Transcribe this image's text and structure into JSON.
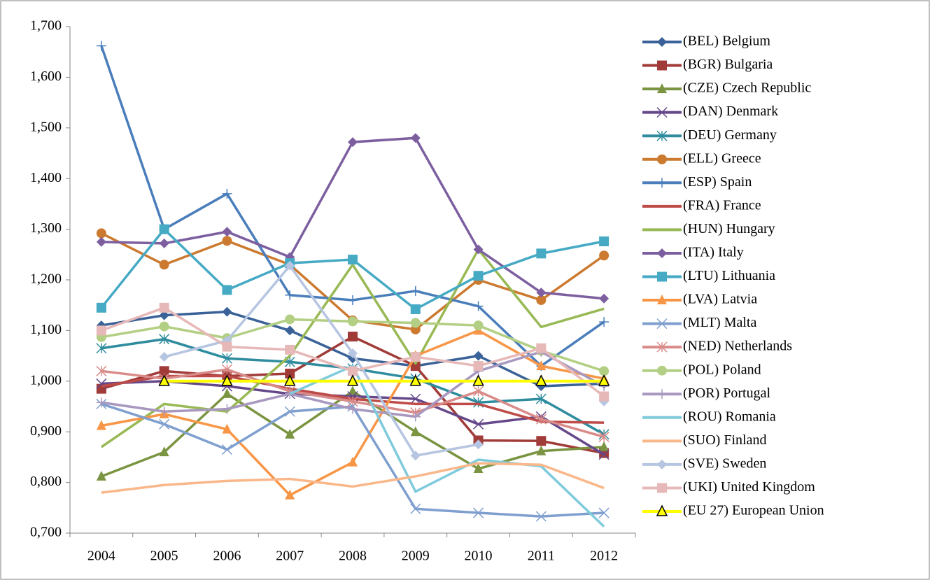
{
  "chart_data": {
    "type": "line",
    "categories": [
      "2004",
      "2005",
      "2006",
      "2007",
      "2008",
      "2009",
      "2010",
      "2011",
      "2012"
    ],
    "ylim": [
      0.7,
      1.7
    ],
    "yticks": [
      {
        "value": 0.7,
        "label": "0,700"
      },
      {
        "value": 0.8,
        "label": "0,800"
      },
      {
        "value": 0.9,
        "label": "0,900"
      },
      {
        "value": 1.0,
        "label": "1,000"
      },
      {
        "value": 1.1,
        "label": "1,100"
      },
      {
        "value": 1.2,
        "label": "1,200"
      },
      {
        "value": 1.3,
        "label": "1,300"
      },
      {
        "value": 1.4,
        "label": "1,400"
      },
      {
        "value": 1.5,
        "label": "1,500"
      },
      {
        "value": 1.6,
        "label": "1,600"
      },
      {
        "value": 1.7,
        "label": "1,700"
      }
    ],
    "legend": "right",
    "series": [
      {
        "name": "(BEL) Belgium",
        "color": "#3a6298",
        "marker": "diamond",
        "values": [
          1.11,
          1.13,
          1.137,
          1.1,
          1.045,
          1.03,
          1.05,
          0.99,
          0.995
        ]
      },
      {
        "name": "(BGR) Bulgaria",
        "color": "#a03b38",
        "marker": "square",
        "values": [
          0.985,
          1.02,
          1.01,
          1.015,
          1.088,
          1.03,
          0.883,
          0.882,
          0.858
        ]
      },
      {
        "name": "(CZE) Czech Republic",
        "color": "#7a9441",
        "marker": "triangle",
        "values": [
          0.812,
          0.86,
          0.975,
          0.895,
          0.98,
          0.9,
          0.827,
          0.862,
          0.87
        ]
      },
      {
        "name": "(DAN) Denmark",
        "color": "#65488a",
        "marker": "x",
        "values": [
          0.995,
          1.0,
          0.99,
          0.975,
          0.97,
          0.965,
          0.915,
          0.93,
          0.855
        ]
      },
      {
        "name": "(DEU) Germany",
        "color": "#2e8c9e",
        "marker": "star",
        "values": [
          1.065,
          1.083,
          1.045,
          1.038,
          1.025,
          1.005,
          0.958,
          0.965,
          0.895
        ]
      },
      {
        "name": "(ELL) Greece",
        "color": "#cc7a30",
        "marker": "circle",
        "values": [
          1.292,
          1.23,
          1.277,
          1.23,
          1.12,
          1.102,
          1.2,
          1.16,
          1.248
        ]
      },
      {
        "name": "(ESP) Spain",
        "color": "#4a7ebb",
        "marker": "plus",
        "values": [
          1.662,
          1.3,
          1.37,
          1.17,
          1.16,
          1.178,
          1.148,
          1.03,
          1.117
        ]
      },
      {
        "name": "(FRA) France",
        "color": "#be4b48",
        "marker": "none",
        "values": [
          0.99,
          1.01,
          1.01,
          0.985,
          0.965,
          0.955,
          0.955,
          0.92,
          0.918
        ]
      },
      {
        "name": "(HUN) Hungary",
        "color": "#98b954",
        "marker": "none",
        "values": [
          0.87,
          0.955,
          0.94,
          1.05,
          1.23,
          1.035,
          1.26,
          1.107,
          1.143
        ]
      },
      {
        "name": "(ITA) Italy",
        "color": "#7d5fa0",
        "marker": "diamond",
        "values": [
          1.275,
          1.272,
          1.295,
          1.245,
          1.472,
          1.48,
          1.26,
          1.175,
          1.163
        ]
      },
      {
        "name": "(LTU) Lithuania",
        "color": "#46aac5",
        "marker": "square",
        "values": [
          1.145,
          1.3,
          1.18,
          1.233,
          1.24,
          1.142,
          1.208,
          1.252,
          1.276
        ]
      },
      {
        "name": "(LVA) Latvia",
        "color": "#f79646",
        "marker": "triangle",
        "values": [
          0.912,
          0.935,
          0.905,
          0.775,
          0.84,
          1.05,
          1.1,
          1.03,
          1.005
        ]
      },
      {
        "name": "(MLT) Malta",
        "color": "#7f9fcf",
        "marker": "x",
        "values": [
          0.955,
          0.915,
          0.865,
          0.94,
          0.95,
          0.748,
          0.74,
          0.733,
          0.74
        ]
      },
      {
        "name": "(NED) Netherlands",
        "color": "#d98b89",
        "marker": "star",
        "values": [
          1.02,
          1.005,
          1.023,
          0.98,
          0.96,
          0.938,
          0.98,
          0.925,
          0.89
        ]
      },
      {
        "name": "(POL) Poland",
        "color": "#b3cf83",
        "marker": "circle",
        "values": [
          1.087,
          1.108,
          1.085,
          1.122,
          1.118,
          1.115,
          1.11,
          1.06,
          1.02
        ]
      },
      {
        "name": "(POR) Portugal",
        "color": "#a898c0",
        "marker": "plus",
        "values": [
          0.958,
          0.94,
          0.945,
          0.975,
          0.945,
          0.93,
          1.02,
          1.058,
          0.99
        ]
      },
      {
        "name": "(ROU) Romania",
        "color": "#7fcbdc",
        "marker": "none",
        "values": [
          null,
          null,
          null,
          0.975,
          1.03,
          0.782,
          0.845,
          0.832,
          0.713
        ]
      },
      {
        "name": "(SUO) Finland",
        "color": "#f9b78a",
        "marker": "none",
        "values": [
          0.78,
          0.795,
          0.803,
          0.807,
          0.792,
          0.812,
          0.838,
          0.835,
          0.789
        ]
      },
      {
        "name": "(SVE) Sweden",
        "color": "#b6c5e1",
        "marker": "diamond",
        "values": [
          null,
          1.048,
          1.08,
          1.228,
          1.055,
          0.853,
          0.875,
          null,
          0.96
        ]
      },
      {
        "name": "(UKI) United Kingdom",
        "color": "#e6b9b8",
        "marker": "square",
        "values": [
          1.1,
          1.145,
          1.068,
          1.062,
          1.02,
          1.048,
          1.03,
          1.065,
          0.97
        ]
      },
      {
        "name": "(EU 27) European Union",
        "color": "#ffff00",
        "marker": "triangle-outline",
        "values": [
          null,
          1.0,
          1.0,
          1.0,
          1.0,
          1.0,
          1.0,
          1.0,
          1.0
        ]
      }
    ]
  }
}
